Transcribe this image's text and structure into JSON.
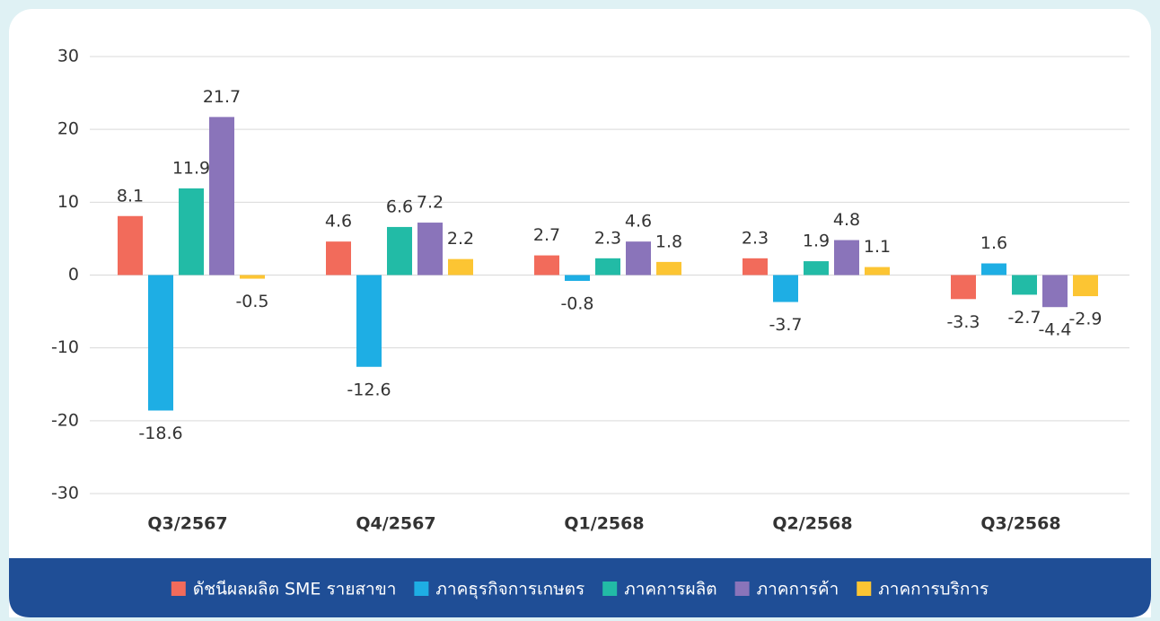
{
  "chart_data": {
    "type": "bar",
    "categories": [
      "Q3/2567",
      "Q4/2567",
      "Q1/2568",
      "Q2/2568",
      "Q3/2568"
    ],
    "series": [
      {
        "name": "ดัชนีผลผลิต SME รายสาขา",
        "color": "#f26b5b",
        "values": [
          8.1,
          4.6,
          2.7,
          2.3,
          -3.3
        ]
      },
      {
        "name": "ภาคธุรกิจการเกษตร",
        "color": "#1eaee4",
        "values": [
          -18.6,
          -12.6,
          -0.8,
          -3.7,
          1.6
        ]
      },
      {
        "name": "ภาคการผลิต",
        "color": "#22bba6",
        "values": [
          11.9,
          6.6,
          2.3,
          1.9,
          -2.7
        ]
      },
      {
        "name": "ภาคการค้า",
        "color": "#8a74ba",
        "values": [
          21.7,
          7.2,
          4.6,
          4.8,
          -4.4
        ]
      },
      {
        "name": "ภาคการบริการ",
        "color": "#fcc533",
        "values": [
          -0.5,
          2.2,
          1.8,
          1.1,
          -2.9
        ]
      }
    ],
    "ylim": [
      -30,
      30
    ],
    "yticks": [
      -30,
      -20,
      -10,
      0,
      10,
      20,
      30
    ],
    "grid": true,
    "legend": "bottom"
  }
}
